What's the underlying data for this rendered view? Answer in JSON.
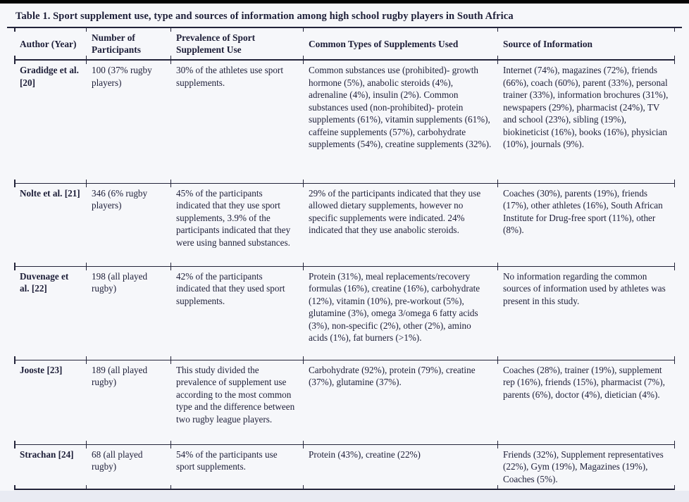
{
  "table": {
    "title": "Table 1. Sport supplement use, type and sources of information among high school rugby players in South Africa",
    "columns": [
      "Author (Year)",
      "Number of Participants",
      "Prevalence of Sport Supplement Use",
      "Common Types of Supplements Used",
      "Source of Information"
    ],
    "rows": [
      {
        "author": "Gradidge et al. [20]",
        "participants": "100 (37% rugby players)",
        "prevalence": "30% of the athletes use sport supplements.",
        "types": "Common substances use (prohibited)- growth hormone (5%), anabolic steroids (4%), adrenaline (4%), insulin (2%). Common substances used (non-prohibited)- protein supplements (61%), vitamin supplements (61%), caffeine supplements (57%), carbohydrate supplements (54%), creatine supplements (32%).",
        "sources": "Internet (74%), magazines (72%), friends (66%), coach (60%), parent (33%), personal trainer (33%), information brochures (31%), newspapers (29%), pharmacist (24%), TV and school (23%), sibling (19%), biokineticist (16%), books (16%), physician (10%), journals (9%)."
      },
      {
        "author": "Nolte et al. [21]",
        "participants": "346 (6% rugby players)",
        "prevalence": "45% of the participants indicated that they use sport supplements, 3.9% of the participants indicated that they were using banned substances.",
        "types": "29% of the participants indicated that they use allowed dietary supplements, however no specific supplements were indicated. 24% indicated that they use anabolic steroids.",
        "sources": "Coaches (30%), parents (19%), friends (17%), other athletes (16%), South African Institute for Drug-free sport (11%), other (8%)."
      },
      {
        "author": "Duvenage et al. [22]",
        "participants": "198 (all played rugby)",
        "prevalence": "42% of the participants indicated that they used sport supplements.",
        "types": "Protein (31%), meal replacements/recovery formulas (16%), creatine (16%), carbohydrate (12%), vitamin (10%), pre-workout (5%), glutamine (3%), omega 3/omega 6 fatty acids (3%), non-specific (2%), other (2%), amino acids (1%), fat burners (>1%).",
        "sources": "No information regarding the common sources of information used by athletes was present in this study."
      },
      {
        "author": "Jooste [23]",
        "participants": "189 (all played rugby)",
        "prevalence": "This study divided the prevalence of supplement use according to the most common type and the difference between two rugby league players.",
        "types": "Carbohydrate (92%), protein (79%), creatine (37%), glutamine (37%).",
        "sources": "Coaches (28%), trainer (19%), supplement rep (16%), friends (15%), pharmacist (7%), parents (6%), doctor (4%), dietician (4%)."
      },
      {
        "author": "Strachan [24]",
        "participants": "68 (all played rugby)",
        "prevalence": "54% of the participants use sport supplements.",
        "types": "Protein (43%), creatine (22%)",
        "sources": "Friends (32%), Supplement representatives (22%), Gym (19%), Magazines (19%), Coaches (5%)."
      }
    ]
  },
  "colors": {
    "page_background": "#e9ebf3",
    "sheet_background": "#f6f7fa",
    "text": "#1d1e38",
    "rule": "#23243a",
    "top_bar": "#050505"
  }
}
